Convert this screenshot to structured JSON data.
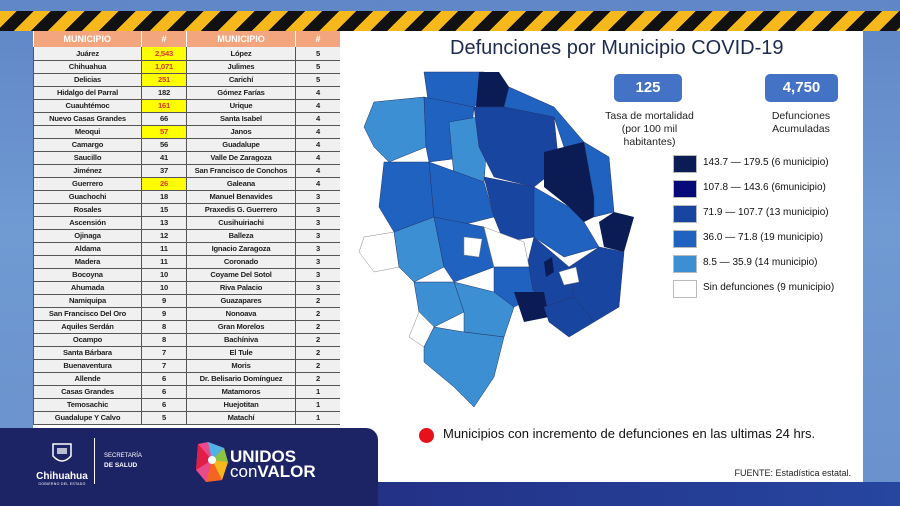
{
  "table": {
    "headers": [
      "MUNICIPIO",
      "#",
      "MUNICIPIO",
      "#"
    ],
    "rows": [
      {
        "m1": "Juárez",
        "n1": "2,543",
        "h1": true,
        "m2": "López",
        "n2": "5"
      },
      {
        "m1": "Chihuahua",
        "n1": "1,071",
        "h1": true,
        "m2": "Julimes",
        "n2": "5"
      },
      {
        "m1": "Delicias",
        "n1": "251",
        "h1": true,
        "m2": "Carichí",
        "n2": "5"
      },
      {
        "m1": "Hidalgo del Parral",
        "n1": "182",
        "h1": false,
        "m2": "Gómez Farías",
        "n2": "4"
      },
      {
        "m1": "Cuauhtémoc",
        "n1": "161",
        "h1": true,
        "m2": "Urique",
        "n2": "4"
      },
      {
        "m1": "Nuevo Casas Grandes",
        "n1": "66",
        "h1": false,
        "m2": "Santa Isabel",
        "n2": "4"
      },
      {
        "m1": "Meoqui",
        "n1": "57",
        "h1": true,
        "m2": "Janos",
        "n2": "4"
      },
      {
        "m1": "Camargo",
        "n1": "56",
        "h1": false,
        "m2": "Guadalupe",
        "n2": "4"
      },
      {
        "m1": "Saucillo",
        "n1": "41",
        "h1": false,
        "m2": "Valle De Zaragoza",
        "n2": "4"
      },
      {
        "m1": "Jiménez",
        "n1": "37",
        "h1": false,
        "m2": "San Francisco de Conchos",
        "n2": "4"
      },
      {
        "m1": "Guerrero",
        "n1": "26",
        "h1": true,
        "m2": "Galeana",
        "n2": "4"
      },
      {
        "m1": "Guachochi",
        "n1": "18",
        "h1": false,
        "m2": "Manuel Benavides",
        "n2": "3"
      },
      {
        "m1": "Rosales",
        "n1": "15",
        "h1": false,
        "m2": "Praxedis G. Guerrero",
        "n2": "3"
      },
      {
        "m1": "Ascensión",
        "n1": "13",
        "h1": false,
        "m2": "Cusihuiriachi",
        "n2": "3"
      },
      {
        "m1": "Ojinaga",
        "n1": "12",
        "h1": false,
        "m2": "Balleza",
        "n2": "3"
      },
      {
        "m1": "Aldama",
        "n1": "11",
        "h1": false,
        "m2": "Ignacio Zaragoza",
        "n2": "3"
      },
      {
        "m1": "Madera",
        "n1": "11",
        "h1": false,
        "m2": "Coronado",
        "n2": "3"
      },
      {
        "m1": "Bocoyna",
        "n1": "10",
        "h1": false,
        "m2": "Coyame Del Sotol",
        "n2": "3"
      },
      {
        "m1": "Ahumada",
        "n1": "10",
        "h1": false,
        "m2": "Riva Palacio",
        "n2": "3"
      },
      {
        "m1": "Namiquipa",
        "n1": "9",
        "h1": false,
        "m2": "Guazapares",
        "n2": "2"
      },
      {
        "m1": "San Francisco Del Oro",
        "n1": "9",
        "h1": false,
        "m2": "Nonoava",
        "n2": "2"
      },
      {
        "m1": "Aquiles Serdán",
        "n1": "8",
        "h1": false,
        "m2": "Gran Morelos",
        "n2": "2"
      },
      {
        "m1": "Ocampo",
        "n1": "8",
        "h1": false,
        "m2": "Bachíniva",
        "n2": "2"
      },
      {
        "m1": "Santa Bárbara",
        "n1": "7",
        "h1": false,
        "m2": "El Tule",
        "n2": "2"
      },
      {
        "m1": "Buenaventura",
        "n1": "7",
        "h1": false,
        "m2": "Moris",
        "n2": "2"
      },
      {
        "m1": "Allende",
        "n1": "6",
        "h1": false,
        "m2": "Dr. Belisario Domínguez",
        "n2": "2"
      },
      {
        "m1": "Casas Grandes",
        "n1": "6",
        "h1": false,
        "m2": "Matamoros",
        "n2": "1"
      },
      {
        "m1": "Temosachic",
        "n1": "6",
        "h1": false,
        "m2": "Huejotitan",
        "n2": "1"
      },
      {
        "m1": "Guadalupe Y Calvo",
        "n1": "5",
        "h1": false,
        "m2": "Matachí",
        "n2": "1"
      }
    ]
  },
  "panel": {
    "title": "Defunciones por Municipio COVID-19",
    "stats": [
      {
        "value": "125",
        "label_line1": "Tasa de mortalidad",
        "label_line2": "(por 100 mil habitantes)"
      },
      {
        "value": "4,750",
        "label_line1": "Defunciones",
        "label_line2": "Acumuladas"
      }
    ],
    "legend": [
      {
        "label": "143.7 — 179.5 (6 municipio)",
        "color": "#0b1c55"
      },
      {
        "label": "107.8 — 143.6 (6municipio)",
        "color": "#050a78"
      },
      {
        "label": "71.9 — 107.7 (13 municipio)",
        "color": "#1845a0"
      },
      {
        "label": "36.0 — 71.8 (19 municipio)",
        "color": "#1f62c0"
      },
      {
        "label": "8.5 — 35.9 (14 municipio)",
        "color": "#3b8fd2"
      },
      {
        "label": "Sin defunciones (9 municipio)",
        "color": "#ffffff"
      }
    ],
    "note": "Municipios con incremento de defunciones en las ultimas 24 hrs.",
    "source": "FUENTE:  Estadística estatal."
  },
  "footer": {
    "state_name": "Chihuahua",
    "state_sub": "GOBIERNO DEL ESTADO",
    "secretaria_line1": "SECRETARÍA",
    "secretaria_line2": "DE SALUD",
    "campaign_line1": "UNIDOS",
    "campaign_con": "con",
    "campaign_valor": "VALOR"
  }
}
